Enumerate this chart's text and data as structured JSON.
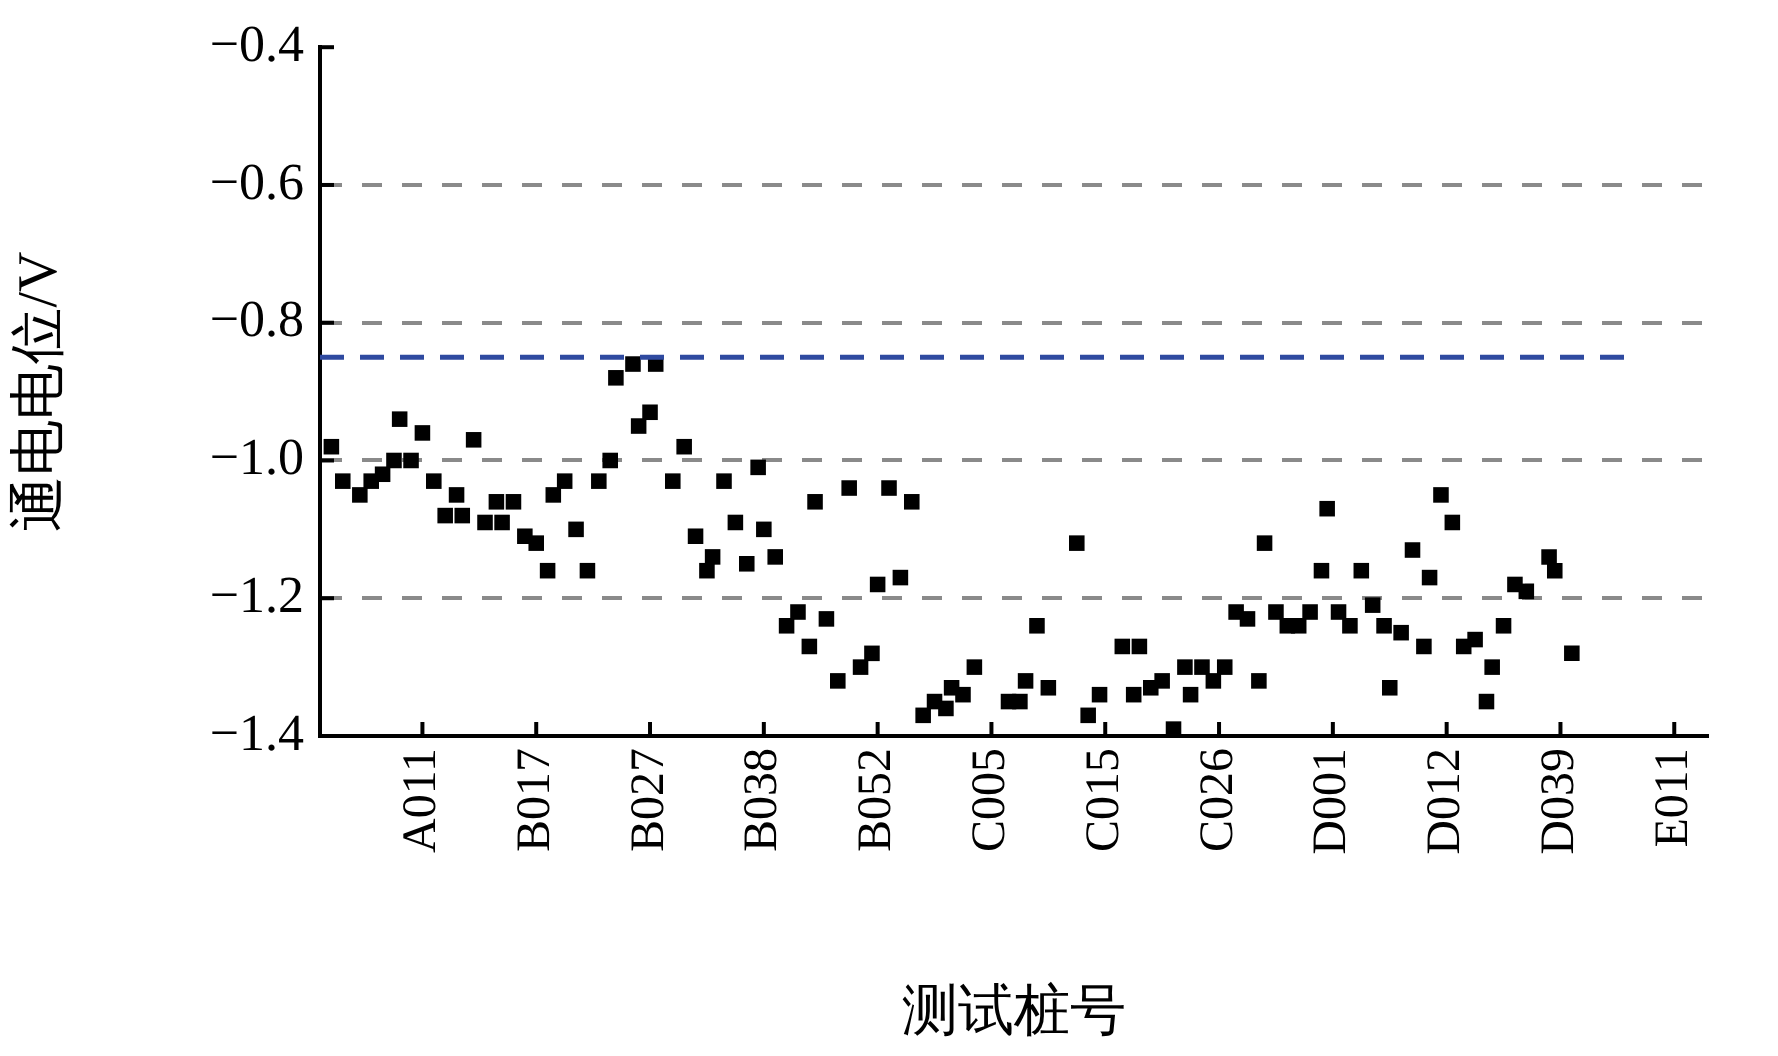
{
  "chart_data": {
    "type": "scatter",
    "xlabel": "测试桩号",
    "ylabel": "通电电位/V",
    "categories": [
      null,
      null,
      null,
      null,
      null,
      null,
      null,
      null,
      null,
      null,
      null,
      null,
      null,
      null,
      null,
      null,
      null,
      null,
      "A011",
      null,
      null,
      null,
      null,
      null,
      null,
      null,
      null,
      null,
      null,
      null,
      null,
      null,
      null,
      null,
      null,
      null,
      null,
      null,
      "B017",
      null,
      null,
      null,
      null,
      null,
      null,
      null,
      null,
      null,
      null,
      null,
      null,
      null,
      null,
      null,
      null,
      null,
      null,
      null,
      "B027",
      null,
      null,
      null,
      null,
      null,
      null,
      null,
      null,
      null,
      null,
      null,
      null,
      null,
      null,
      null,
      null,
      null,
      null,
      null,
      "B038",
      null,
      null,
      null,
      null,
      null,
      null,
      null,
      null,
      null,
      null,
      null,
      null,
      null,
      null,
      null,
      null,
      null,
      null,
      null,
      "B052",
      null,
      null,
      null,
      null,
      null,
      null,
      null,
      null,
      null,
      null,
      null,
      null,
      null,
      null,
      null,
      null,
      null,
      null,
      null,
      "C005",
      null,
      null,
      null,
      null,
      null,
      null,
      null,
      null,
      null,
      null,
      null,
      null,
      null,
      null,
      null,
      null,
      null,
      null,
      null,
      "C015",
      null,
      null,
      null,
      null,
      null,
      null,
      null,
      null,
      null,
      null,
      null,
      null,
      null,
      null,
      null,
      null,
      null,
      null,
      null,
      "C026",
      null,
      null,
      null,
      null,
      null,
      null,
      null,
      null,
      null,
      null,
      null,
      null,
      null,
      null,
      null,
      null,
      null,
      null,
      null,
      "D001",
      null,
      null,
      null,
      null,
      null,
      null,
      null,
      null,
      null,
      null,
      null,
      null,
      null,
      null,
      null,
      null,
      null,
      null,
      null,
      "D012",
      null,
      null,
      null,
      null,
      null,
      null,
      null,
      null,
      null,
      null,
      null,
      null,
      null,
      null,
      null,
      null,
      null,
      null,
      null,
      "D039",
      null,
      null,
      null,
      null,
      null,
      null,
      null,
      null,
      null,
      null,
      null,
      null,
      null,
      null,
      null,
      null,
      null,
      null,
      null,
      "E011",
      null,
      null,
      null,
      null,
      null,
      null
    ],
    "values": [
      null,
      null,
      -0.98,
      null,
      -1.03,
      null,
      null,
      -1.05,
      null,
      -1.03,
      null,
      -1.02,
      null,
      -1.0,
      -0.94,
      null,
      -1.0,
      null,
      -0.96,
      null,
      -1.03,
      null,
      -1.08,
      null,
      -1.05,
      -1.08,
      null,
      -0.97,
      null,
      -1.09,
      null,
      -1.06,
      -1.09,
      null,
      -1.06,
      null,
      -1.11,
      null,
      -1.12,
      null,
      -1.16,
      -1.05,
      null,
      -1.03,
      null,
      -1.1,
      null,
      -1.16,
      null,
      -1.03,
      null,
      -1.0,
      -0.88,
      null,
      null,
      -0.86,
      -0.95,
      null,
      -0.93,
      -0.86,
      null,
      null,
      -1.03,
      null,
      -0.98,
      null,
      -1.11,
      null,
      -1.16,
      -1.14,
      null,
      -1.03,
      null,
      -1.09,
      null,
      -1.15,
      null,
      -1.01,
      -1.1,
      null,
      -1.14,
      null,
      -1.24,
      null,
      -1.22,
      null,
      -1.27,
      -1.06,
      null,
      -1.23,
      null,
      -1.32,
      null,
      -1.04,
      null,
      -1.3,
      null,
      -1.28,
      -1.18,
      null,
      -1.04,
      null,
      -1.17,
      null,
      -1.06,
      null,
      -1.37,
      null,
      -1.35,
      null,
      -1.36,
      -1.33,
      null,
      -1.34,
      null,
      -1.3,
      null,
      null,
      null,
      null,
      null,
      -1.35,
      null,
      -1.35,
      -1.32,
      null,
      -1.24,
      null,
      -1.33,
      null,
      null,
      null,
      null,
      -1.12,
      null,
      -1.37,
      null,
      -1.34,
      null,
      null,
      null,
      -1.27,
      null,
      -1.34,
      -1.27,
      null,
      -1.33,
      null,
      -1.32,
      null,
      -1.39,
      null,
      -1.3,
      -1.34,
      null,
      -1.3,
      null,
      -1.32,
      null,
      -1.3,
      null,
      -1.22,
      null,
      -1.23,
      null,
      -1.32,
      -1.12,
      null,
      -1.22,
      null,
      -1.24,
      null,
      -1.24,
      null,
      -1.22,
      null,
      -1.16,
      -1.07,
      null,
      -1.22,
      null,
      -1.24,
      null,
      -1.16,
      null,
      -1.21,
      null,
      -1.24,
      -1.33,
      null,
      -1.25,
      null,
      -1.13,
      null,
      -1.27,
      -1.17,
      null,
      -1.05,
      null,
      -1.09,
      null,
      -1.27,
      null,
      -1.26,
      null,
      -1.35,
      -1.3,
      null,
      -1.24,
      null,
      -1.18,
      null,
      -1.19,
      null,
      null,
      null,
      -1.14,
      -1.16,
      null,
      null,
      -1.28,
      null,
      null,
      null,
      null,
      null,
      null,
      null,
      null,
      null,
      null,
      null,
      null,
      null,
      null,
      null,
      null,
      null,
      null,
      null,
      null,
      null,
      null,
      null,
      null
    ],
    "color": "#000000",
    "marker": "square",
    "ylim": [
      -1.4,
      -0.4
    ],
    "yticks": [
      {
        "value": -1.4,
        "label": "−1.4"
      },
      {
        "value": -1.2,
        "label": "−1.2"
      },
      {
        "value": -1.0,
        "label": "−1.0"
      },
      {
        "value": -0.8,
        "label": "−0.8"
      },
      {
        "value": -0.6,
        "label": "−0.6"
      },
      {
        "value": -0.4,
        "label": "−0.4"
      }
    ],
    "grid": "y",
    "legend": false,
    "ref_lines": [
      {
        "axis": "y",
        "value": -0.85,
        "color": "#2f4aa0",
        "line_style": "dashed"
      }
    ]
  }
}
